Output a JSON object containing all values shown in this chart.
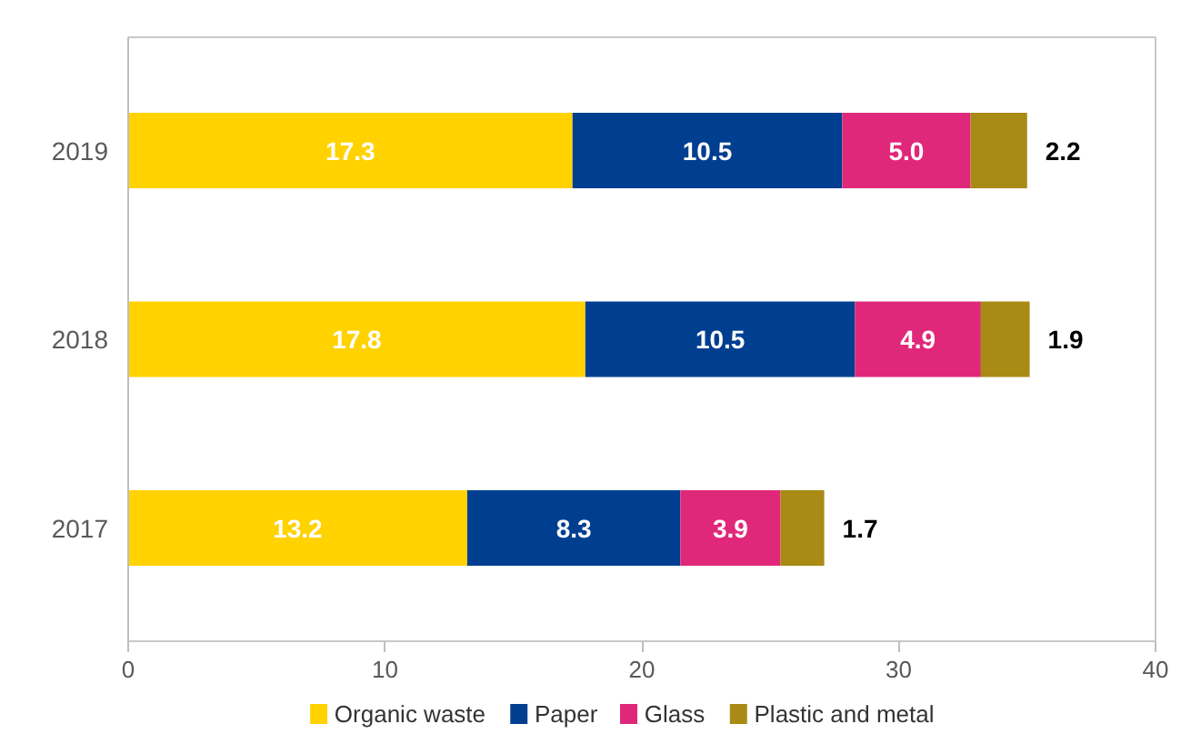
{
  "chart_data": {
    "type": "bar",
    "orientation": "horizontal",
    "stacked": true,
    "categories": [
      "2019",
      "2018",
      "2017"
    ],
    "series": [
      {
        "name": "Organic waste",
        "color": "#ffd200",
        "values": [
          17.3,
          17.8,
          13.2
        ],
        "value_labels": [
          "17.3",
          "17.8",
          "13.2"
        ]
      },
      {
        "name": "Paper",
        "color": "#003f8f",
        "values": [
          10.5,
          10.5,
          8.3
        ],
        "value_labels": [
          "10.5",
          "10.5",
          "8.3"
        ]
      },
      {
        "name": "Glass",
        "color": "#e0287a",
        "values": [
          5.0,
          4.9,
          3.9
        ],
        "value_labels": [
          "5.0",
          "4.9",
          "3.9"
        ]
      },
      {
        "name": "Plastic and metal",
        "color": "#a88a14",
        "values": [
          2.2,
          1.9,
          1.7
        ],
        "value_labels": [
          "2.2",
          "1.9",
          "1.7"
        ]
      }
    ],
    "xlim": [
      0,
      40
    ],
    "xticks": [
      0,
      10,
      20,
      30,
      40
    ],
    "grid": false,
    "legend": "bottom"
  }
}
